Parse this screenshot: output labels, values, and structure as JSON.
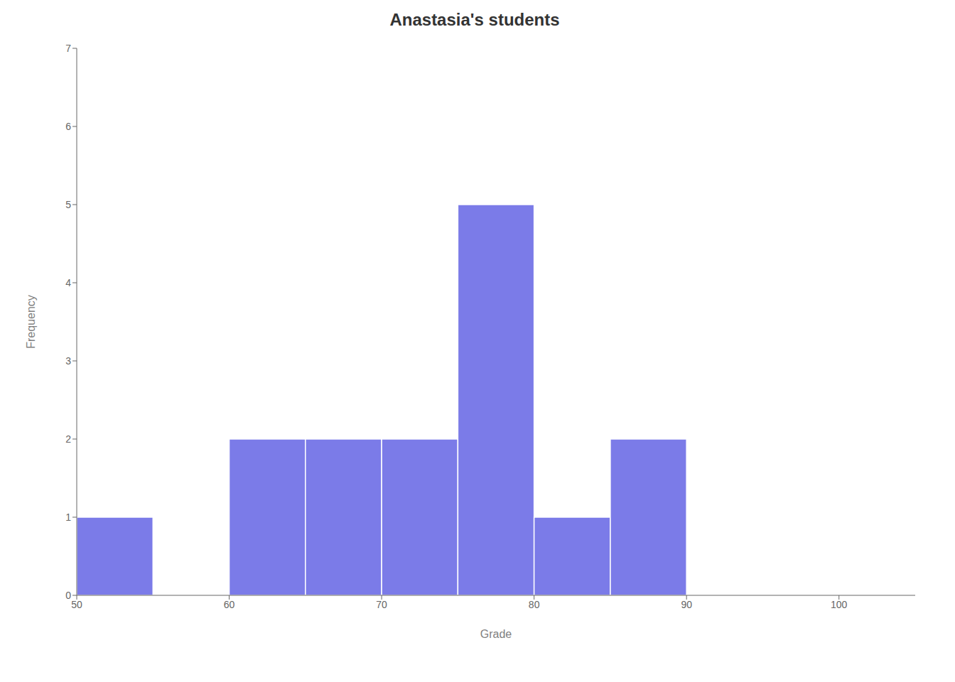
{
  "chart_data": {
    "type": "histogram",
    "title": "Anastasia's students",
    "x_label": "Grade",
    "y_label": "Frequency",
    "bins": [
      50,
      55,
      60,
      65,
      70,
      75,
      80,
      85,
      90
    ],
    "values": [
      1,
      0,
      2,
      2,
      2,
      5,
      1,
      2
    ],
    "color": "#7b7be8",
    "xlim": [
      50,
      105
    ],
    "ylim": [
      0,
      7
    ],
    "xticks": [
      50,
      60,
      70,
      80,
      90,
      100
    ],
    "yticks": [
      0,
      1,
      2,
      3,
      4,
      5,
      6,
      7
    ],
    "grid": false
  }
}
